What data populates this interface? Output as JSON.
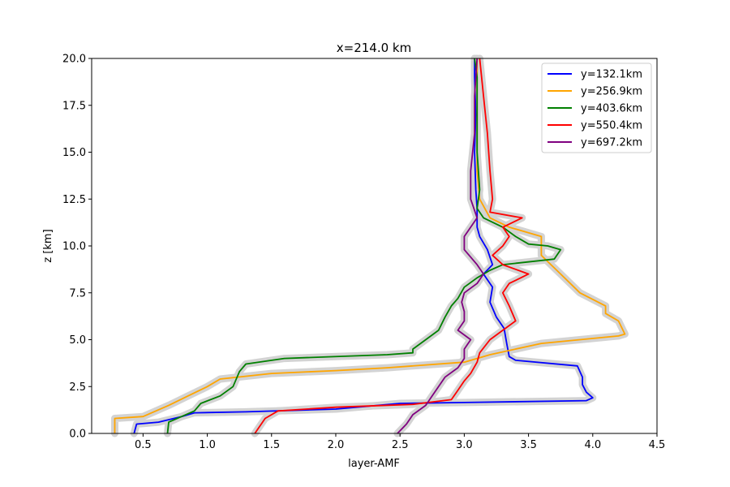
{
  "chart_data": {
    "type": "line",
    "title": "x=214.0 km",
    "xlabel": "layer-AMF",
    "ylabel": "z [km]",
    "xlim": [
      0.1,
      4.5
    ],
    "ylim": [
      0.0,
      20.0
    ],
    "xticks": [
      "0.5",
      "1.0",
      "1.5",
      "2.0",
      "2.5",
      "3.0",
      "3.5",
      "4.0",
      "4.5"
    ],
    "xtick_values": [
      0.5,
      1.0,
      1.5,
      2.0,
      2.5,
      3.0,
      3.5,
      4.0,
      4.5
    ],
    "yticks": [
      "0.0",
      "2.5",
      "5.0",
      "7.5",
      "10.0",
      "12.5",
      "15.0",
      "17.5",
      "20.0"
    ],
    "ytick_values": [
      0.0,
      2.5,
      5.0,
      7.5,
      10.0,
      12.5,
      15.0,
      17.5,
      20.0
    ],
    "grid": false,
    "legend_position": "top-right",
    "uncertainty_color": "#d3d3d3",
    "series": [
      {
        "name": "y=132.1km",
        "color": "#0000ff",
        "points": [
          [
            0.43,
            0.0
          ],
          [
            0.45,
            0.5
          ],
          [
            0.62,
            0.6
          ],
          [
            0.8,
            0.9
          ],
          [
            0.9,
            1.1
          ],
          [
            1.3,
            1.15
          ],
          [
            2.0,
            1.3
          ],
          [
            2.5,
            1.6
          ],
          [
            3.0,
            1.65
          ],
          [
            3.95,
            1.75
          ],
          [
            4.0,
            1.9
          ],
          [
            3.95,
            2.2
          ],
          [
            3.92,
            2.6
          ],
          [
            3.92,
            3.0
          ],
          [
            3.88,
            3.6
          ],
          [
            3.4,
            3.9
          ],
          [
            3.35,
            4.1
          ],
          [
            3.33,
            4.8
          ],
          [
            3.31,
            5.6
          ],
          [
            3.25,
            6.2
          ],
          [
            3.2,
            7.0
          ],
          [
            3.22,
            7.8
          ],
          [
            3.15,
            8.5
          ],
          [
            3.22,
            9.0
          ],
          [
            3.18,
            9.8
          ],
          [
            3.12,
            10.5
          ],
          [
            3.1,
            11.0
          ],
          [
            3.1,
            12.0
          ],
          [
            3.09,
            13.0
          ],
          [
            3.08,
            15.0
          ],
          [
            3.09,
            17.0
          ],
          [
            3.08,
            19.0
          ],
          [
            3.08,
            20.0
          ]
        ]
      },
      {
        "name": "y=256.9km",
        "color": "#ffa500",
        "points": [
          [
            0.28,
            0.0
          ],
          [
            0.28,
            0.8
          ],
          [
            0.5,
            0.9
          ],
          [
            0.7,
            1.5
          ],
          [
            0.85,
            2.0
          ],
          [
            1.0,
            2.5
          ],
          [
            1.1,
            2.9
          ],
          [
            1.5,
            3.2
          ],
          [
            2.0,
            3.35
          ],
          [
            2.4,
            3.5
          ],
          [
            3.0,
            3.8
          ],
          [
            3.2,
            4.2
          ],
          [
            3.6,
            4.8
          ],
          [
            4.2,
            5.2
          ],
          [
            4.25,
            5.3
          ],
          [
            4.2,
            6.0
          ],
          [
            4.1,
            6.4
          ],
          [
            4.1,
            6.8
          ],
          [
            3.9,
            7.5
          ],
          [
            3.75,
            8.5
          ],
          [
            3.6,
            9.5
          ],
          [
            3.6,
            10.5
          ],
          [
            3.35,
            11.0
          ],
          [
            3.2,
            11.5
          ],
          [
            3.12,
            12.5
          ],
          [
            3.1,
            14.0
          ],
          [
            3.1,
            16.0
          ],
          [
            3.1,
            18.0
          ],
          [
            3.1,
            20.0
          ]
        ]
      },
      {
        "name": "y=403.6km",
        "color": "#008000",
        "points": [
          [
            0.69,
            0.0
          ],
          [
            0.7,
            0.6
          ],
          [
            0.9,
            1.2
          ],
          [
            0.95,
            1.6
          ],
          [
            1.1,
            2.0
          ],
          [
            1.2,
            2.5
          ],
          [
            1.25,
            3.3
          ],
          [
            1.3,
            3.7
          ],
          [
            1.6,
            4.0
          ],
          [
            2.4,
            4.2
          ],
          [
            2.6,
            4.3
          ],
          [
            2.6,
            4.5
          ],
          [
            2.7,
            5.0
          ],
          [
            2.8,
            5.5
          ],
          [
            2.85,
            6.2
          ],
          [
            2.9,
            6.8
          ],
          [
            2.95,
            7.2
          ],
          [
            3.0,
            7.8
          ],
          [
            3.1,
            8.3
          ],
          [
            3.2,
            8.7
          ],
          [
            3.3,
            9.0
          ],
          [
            3.7,
            9.3
          ],
          [
            3.75,
            9.8
          ],
          [
            3.65,
            10.0
          ],
          [
            3.5,
            10.1
          ],
          [
            3.4,
            10.5
          ],
          [
            3.3,
            11.0
          ],
          [
            3.15,
            11.5
          ],
          [
            3.1,
            12.0
          ],
          [
            3.12,
            13.0
          ],
          [
            3.1,
            15.0
          ],
          [
            3.1,
            17.0
          ],
          [
            3.1,
            19.0
          ],
          [
            3.08,
            20.0
          ]
        ]
      },
      {
        "name": "y=550.4km",
        "color": "#ff0000",
        "points": [
          [
            1.37,
            0.0
          ],
          [
            1.4,
            0.3
          ],
          [
            1.45,
            0.8
          ],
          [
            1.55,
            1.2
          ],
          [
            2.0,
            1.4
          ],
          [
            2.6,
            1.55
          ],
          [
            2.9,
            1.8
          ],
          [
            2.95,
            2.3
          ],
          [
            3.0,
            2.8
          ],
          [
            3.05,
            3.2
          ],
          [
            3.1,
            3.8
          ],
          [
            3.12,
            4.3
          ],
          [
            3.2,
            5.0
          ],
          [
            3.3,
            5.5
          ],
          [
            3.4,
            6.0
          ],
          [
            3.35,
            6.8
          ],
          [
            3.3,
            7.5
          ],
          [
            3.35,
            8.0
          ],
          [
            3.5,
            8.5
          ],
          [
            3.3,
            9.0
          ],
          [
            3.22,
            9.5
          ],
          [
            3.3,
            10.0
          ],
          [
            3.35,
            10.5
          ],
          [
            3.3,
            11.0
          ],
          [
            3.45,
            11.5
          ],
          [
            3.2,
            11.8
          ],
          [
            3.22,
            12.5
          ],
          [
            3.2,
            14.0
          ],
          [
            3.18,
            16.0
          ],
          [
            3.15,
            18.0
          ],
          [
            3.12,
            20.0
          ]
        ]
      },
      {
        "name": "y=697.2km",
        "color": "#800080",
        "points": [
          [
            2.48,
            0.0
          ],
          [
            2.55,
            0.5
          ],
          [
            2.6,
            1.0
          ],
          [
            2.7,
            1.5
          ],
          [
            2.75,
            2.0
          ],
          [
            2.8,
            2.5
          ],
          [
            2.85,
            3.0
          ],
          [
            2.95,
            3.5
          ],
          [
            3.0,
            4.0
          ],
          [
            3.0,
            4.5
          ],
          [
            3.05,
            5.0
          ],
          [
            2.95,
            5.5
          ],
          [
            3.0,
            6.0
          ],
          [
            3.0,
            6.5
          ],
          [
            2.98,
            7.0
          ],
          [
            3.0,
            7.5
          ],
          [
            3.1,
            8.0
          ],
          [
            3.15,
            8.5
          ],
          [
            3.1,
            9.0
          ],
          [
            3.0,
            9.8
          ],
          [
            3.0,
            10.5
          ],
          [
            3.05,
            11.0
          ],
          [
            3.1,
            11.5
          ],
          [
            3.05,
            12.5
          ],
          [
            3.05,
            14.0
          ],
          [
            3.08,
            16.0
          ],
          [
            3.08,
            18.0
          ],
          [
            3.1,
            20.0
          ]
        ]
      }
    ]
  }
}
